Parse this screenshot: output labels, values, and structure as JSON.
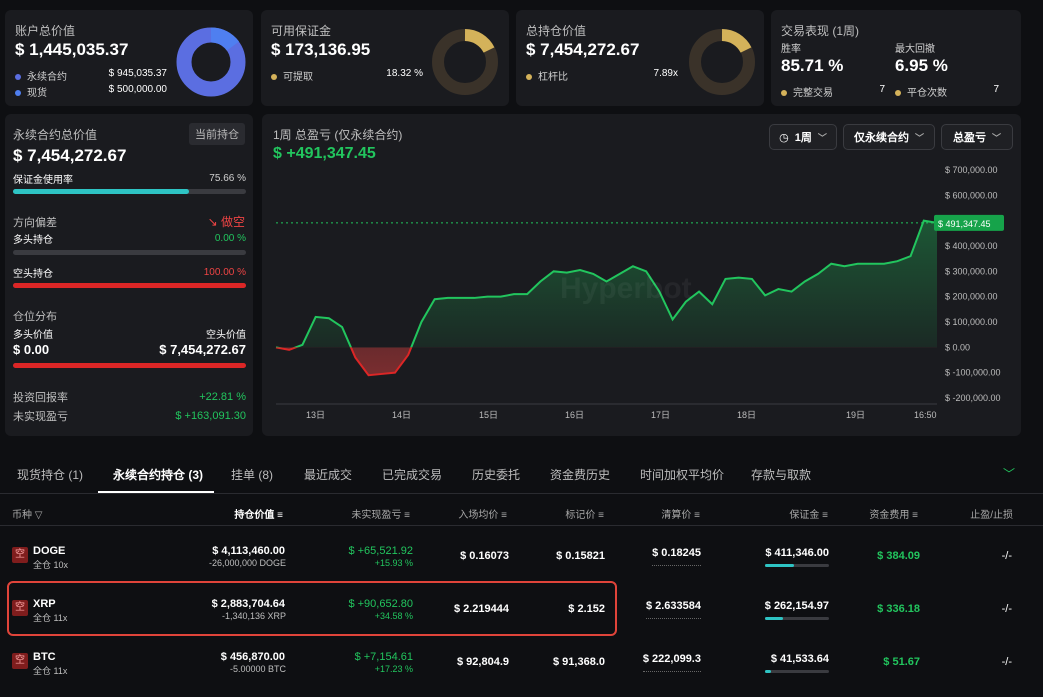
{
  "summary": {
    "account": {
      "label": "账户总价值",
      "value": "$ 1,445,035.37",
      "legend": [
        {
          "label": "永续合约",
          "value": "$ 945,035.37",
          "color": "#5b6ee1"
        },
        {
          "label": "现货",
          "value": "$ 500,000.00",
          "color": "#4f7ff0"
        }
      ]
    },
    "margin": {
      "label": "可用保证金",
      "value": "$ 173,136.95",
      "legend_label": "可提取",
      "legend_value": "18.32 %",
      "color": "#d4b25a"
    },
    "position": {
      "label": "总持仓价值",
      "value": "$ 7,454,272.67",
      "legend_label": "杠杆比",
      "legend_value": "7.89x",
      "color": "#d4b25a"
    },
    "performance": {
      "label": "交易表现 (1周)",
      "winrate_label": "胜率",
      "winrate": "85.71 %",
      "drawdown_label": "最大回撤",
      "drawdown": "6.95 %",
      "completed_label": "完整交易",
      "completed": "7",
      "even_label": "平仓次数",
      "even": "7"
    }
  },
  "perp": {
    "title": "永续合约总价值",
    "badge": "当前持仓",
    "value": "$ 7,454,272.67",
    "margin_usage_label": "保证金使用率",
    "margin_usage": "75.66 %",
    "margin_usage_pct": 75.66,
    "bias_label": "方向偏差",
    "bias_value": "做空",
    "long_label": "多头持仓",
    "long_value": "0.00 %",
    "long_pct": 0,
    "short_label": "空头持仓",
    "short_value": "100.00 %",
    "short_pct": 100,
    "dist_label": "仓位分布",
    "long_val_label": "多头价值",
    "short_val_label": "空头价值",
    "long_val": "$ 0.00",
    "short_val": "$ 7,454,272.67",
    "roi_label": "投资回报率",
    "roi": "+22.81 %",
    "upnl_label": "未实现盈亏",
    "upnl": "$ +163,091.30"
  },
  "chart_header": {
    "title": "1周 总盈亏 (仅永续合约)",
    "value": "$ +491,347.45",
    "btn_period": "1周",
    "btn_scope": "仅永续合约",
    "btn_metric": "总盈亏",
    "watermark": "Hyperbot",
    "last_label": "$ 491,347.45"
  },
  "chart_data": {
    "type": "area",
    "title": "1周 总盈亏 (仅永续合约)",
    "xlabels": [
      "13日",
      "14日",
      "15日",
      "16日",
      "17日",
      "18日",
      "19日",
      "16:50"
    ],
    "yticks": [
      "$ 700,000.00",
      "$ 600,000.00",
      "$ 500,000.00",
      "$ 400,000.00",
      "$ 300,000.00",
      "$ 200,000.00",
      "$ 100,000.00",
      "$ 0.00",
      "$ -100,000.00",
      "$ -200,000.00"
    ],
    "ylim": [
      -200000,
      700000
    ],
    "values": [
      0,
      -10000,
      10000,
      120000,
      115000,
      80000,
      -40000,
      -110000,
      -105000,
      -100000,
      -30000,
      100000,
      190000,
      195000,
      195000,
      195000,
      200000,
      200000,
      210000,
      210000,
      260000,
      300000,
      295000,
      305000,
      290000,
      260000,
      290000,
      320000,
      300000,
      220000,
      110000,
      180000,
      220000,
      170000,
      270000,
      275000,
      270000,
      205000,
      230000,
      220000,
      260000,
      290000,
      330000,
      320000,
      330000,
      330000,
      330000,
      340000,
      360000,
      500000,
      491347
    ]
  },
  "tabs": [
    "现货持仓 (1)",
    "永续合约持仓 (3)",
    "挂单 (8)",
    "最近成交",
    "已完成交易",
    "历史委托",
    "资金费历史",
    "时间加权平均价",
    "存款与取款"
  ],
  "table": {
    "headers": [
      "币种",
      "持仓价值",
      "未实现盈亏",
      "入场均价",
      "标记价",
      "清算价",
      "保证金",
      "资金费用",
      "止盈/止损"
    ],
    "rows": [
      {
        "side": "空",
        "coin": "DOGE",
        "mode": "全仓 10x",
        "value": "$ 4,113,460.00",
        "qty": "-26,000,000 DOGE",
        "pnl": "$ +65,521.92",
        "pnl_pct": "+15.93 %",
        "entry": "$ 0.16073",
        "mark": "$ 0.15821",
        "liq": "$ 0.18245",
        "margin": "$ 411,346.00",
        "margin_pct": 45,
        "funding": "$ 384.09",
        "tpsl": "-/-"
      },
      {
        "side": "空",
        "coin": "XRP",
        "mode": "全仓 11x",
        "value": "$ 2,883,704.64",
        "qty": "-1,340,136 XRP",
        "pnl": "$ +90,652.80",
        "pnl_pct": "+34.58 %",
        "entry": "$ 2.219444",
        "mark": "$ 2.152",
        "liq": "$ 2.633584",
        "margin": "$ 262,154.97",
        "margin_pct": 28,
        "funding": "$ 336.18",
        "tpsl": "-/-"
      },
      {
        "side": "空",
        "coin": "BTC",
        "mode": "全仓 11x",
        "value": "$ 456,870.00",
        "qty": "-5.00000 BTC",
        "pnl": "$ +7,154.61",
        "pnl_pct": "+17.23 %",
        "entry": "$ 92,804.9",
        "mark": "$ 91,368.0",
        "liq": "$ 222,099.3",
        "margin": "$ 41,533.64",
        "margin_pct": 10,
        "funding": "$ 51.67",
        "tpsl": "-/-"
      }
    ]
  }
}
